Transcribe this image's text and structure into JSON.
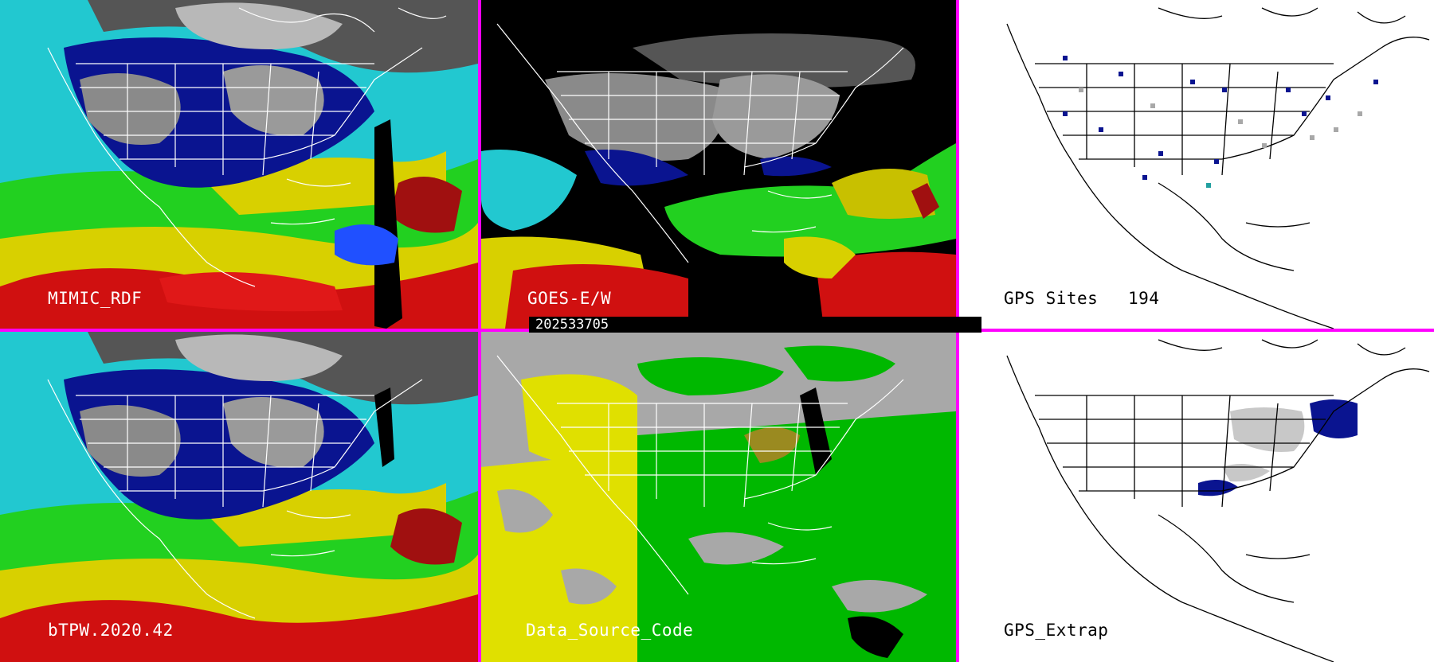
{
  "panels": {
    "mimic_rdf": {
      "label": "MIMIC_RDF"
    },
    "goes": {
      "label": "GOES-E/W"
    },
    "gps_sites": {
      "label": "GPS Sites",
      "count": "194"
    },
    "btpw": {
      "label": "bTPW.2020.42"
    },
    "data_source": {
      "label": "Data_Source_Code"
    },
    "gps_extrap": {
      "label": "GPS_Extrap"
    }
  },
  "timestamp": "202533705",
  "colors": {
    "divider": "#ff00ff",
    "tpw_dry_gray": "#9a9a9a",
    "tpw_dark_blue": "#0a1490",
    "tpw_cyan": "#22d8e0",
    "tpw_green": "#22d020",
    "tpw_yellow": "#d8d000",
    "tpw_red": "#d01010",
    "source_gray": "#a8a8a8",
    "source_green": "#00b800",
    "source_yellow": "#e0e000",
    "source_olive": "#9a8a20"
  }
}
